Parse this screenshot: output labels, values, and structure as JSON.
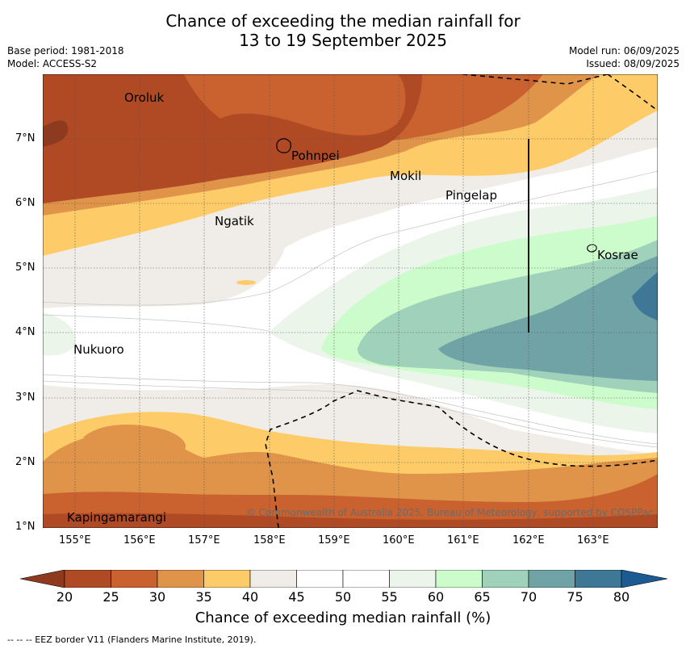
{
  "title": {
    "line1": "Chance of exceeding the median rainfall for",
    "line2": "13 to 19 September 2025"
  },
  "meta": {
    "base_period": "Base period: 1981-2018",
    "model": "Model: ACCESS-S2",
    "model_run": "Model run: 06/09/2025",
    "issued": "Issued: 08/09/2025"
  },
  "map": {
    "lon_ticks": [
      "155°E",
      "156°E",
      "157°E",
      "158°E",
      "159°E",
      "160°E",
      "161°E",
      "162°E",
      "163°E"
    ],
    "lat_ticks": [
      "7°N",
      "6°N",
      "5°N",
      "4°N",
      "3°N",
      "2°N",
      "1°N"
    ],
    "lon_range": [
      154.5,
      164.0
    ],
    "lat_range": [
      1.0,
      8.0
    ],
    "places": [
      {
        "name": "Oroluk",
        "lon": 155.75,
        "lat": 7.62
      },
      {
        "name": "Pohnpei",
        "lon": 158.3,
        "lat": 6.87
      },
      {
        "name": "Mokil",
        "lon": 159.8,
        "lat": 6.45
      },
      {
        "name": "Pingelap",
        "lon": 160.72,
        "lat": 6.14
      },
      {
        "name": "Ngatik",
        "lon": 157.15,
        "lat": 5.77
      },
      {
        "name": "Kosrae",
        "lon": 163.0,
        "lat": 5.2
      },
      {
        "name": "Nukuoro",
        "lon": 154.95,
        "lat": 3.8
      },
      {
        "name": "Kapingamarangi",
        "lon": 154.85,
        "lat": 1.1
      }
    ],
    "copyright": "© Commonwealth of Australia 2025, Bureau of Meteorology, supported by COSPPac"
  },
  "colorbar": {
    "ticks": [
      "20",
      "25",
      "30",
      "35",
      "40",
      "45",
      "50",
      "55",
      "60",
      "65",
      "70",
      "75",
      "80"
    ],
    "colors": [
      "#b04a25",
      "#c9622f",
      "#e0944a",
      "#fdcc68",
      "#f0ede8",
      "#ffffff",
      "#ffffff",
      "#ebf5ea",
      "#ccfccc",
      "#9fd1bb",
      "#6fa3a6",
      "#3f7797"
    ],
    "under_color": "#8e3a1e",
    "over_color": "#1c5a92",
    "label": "Chance of exceeding median rainfall (%)"
  },
  "footnote": "-- -- -- EEZ border V11 (Flanders Marine Institute, 2019)."
}
